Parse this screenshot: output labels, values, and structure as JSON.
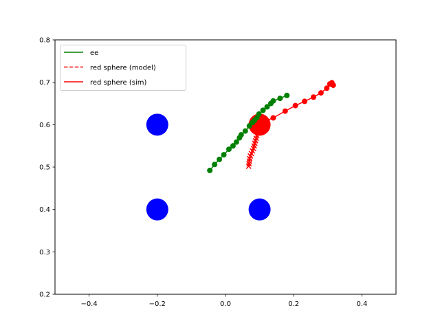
{
  "chart_data": {
    "type": "scatter",
    "title": "",
    "xlabel": "",
    "ylabel": "",
    "xlim": [
      -0.5,
      0.5
    ],
    "ylim": [
      0.2,
      0.8
    ],
    "grid": false,
    "legend_position": "upper-left",
    "xticks": [
      -0.4,
      -0.2,
      0.0,
      0.2,
      0.4
    ],
    "xtick_labels": [
      "−0.4",
      "−0.2",
      "0.0",
      "0.2",
      "0.4"
    ],
    "yticks": [
      0.2,
      0.3,
      0.4,
      0.5,
      0.6,
      0.7,
      0.8
    ],
    "ytick_labels": [
      "0.2",
      "0.3",
      "0.4",
      "0.5",
      "0.6",
      "0.7",
      "0.8"
    ],
    "legend": [
      {
        "label": "ee",
        "color": "#008000",
        "style": "solid"
      },
      {
        "label": "red sphere (model)",
        "color": "#ff0000",
        "style": "dashed"
      },
      {
        "label": "red sphere (sim)",
        "color": "#ff0000",
        "style": "solid"
      }
    ],
    "series": [
      {
        "name": "ee",
        "color": "#008000",
        "marker": "circle",
        "line": "solid",
        "points": [
          [
            -0.046,
            0.492
          ],
          [
            -0.032,
            0.506
          ],
          [
            -0.018,
            0.518
          ],
          [
            -0.005,
            0.529
          ],
          [
            0.01,
            0.542
          ],
          [
            0.022,
            0.55
          ],
          [
            0.032,
            0.559
          ],
          [
            0.041,
            0.569
          ],
          [
            0.046,
            0.576
          ],
          [
            0.058,
            0.585
          ],
          [
            0.07,
            0.597
          ],
          [
            0.079,
            0.605
          ],
          [
            0.085,
            0.61
          ],
          [
            0.092,
            0.616
          ],
          [
            0.098,
            0.625
          ],
          [
            0.11,
            0.634
          ],
          [
            0.122,
            0.642
          ],
          [
            0.133,
            0.65
          ],
          [
            0.14,
            0.656
          ],
          [
            0.16,
            0.662
          ],
          [
            0.18,
            0.669
          ]
        ]
      },
      {
        "name": "red sphere (model)",
        "color": "#ff0000",
        "marker": "x",
        "line": "dashed",
        "points": [
          [
            0.068,
            0.502
          ],
          [
            0.069,
            0.508
          ],
          [
            0.07,
            0.514
          ],
          [
            0.071,
            0.52
          ],
          [
            0.073,
            0.526
          ],
          [
            0.076,
            0.532
          ],
          [
            0.079,
            0.538
          ],
          [
            0.082,
            0.544
          ],
          [
            0.084,
            0.55
          ],
          [
            0.086,
            0.556
          ],
          [
            0.088,
            0.562
          ],
          [
            0.09,
            0.568
          ],
          [
            0.092,
            0.574
          ],
          [
            0.095,
            0.58
          ],
          [
            0.098,
            0.588
          ],
          [
            0.1,
            0.596
          ],
          [
            0.1,
            0.6
          ]
        ]
      },
      {
        "name": "red sphere (sim)",
        "color": "#ff0000",
        "marker": "circle",
        "line": "solid",
        "points": [
          [
            0.1,
            0.6
          ],
          [
            0.115,
            0.608
          ],
          [
            0.14,
            0.616
          ],
          [
            0.175,
            0.632
          ],
          [
            0.205,
            0.645
          ],
          [
            0.232,
            0.655
          ],
          [
            0.258,
            0.665
          ],
          [
            0.28,
            0.675
          ],
          [
            0.297,
            0.686
          ],
          [
            0.306,
            0.696
          ],
          [
            0.312,
            0.699
          ],
          [
            0.316,
            0.693
          ]
        ]
      }
    ],
    "large_markers": [
      {
        "x": -0.2,
        "y": 0.6,
        "color": "#0000ff",
        "size": "large"
      },
      {
        "x": -0.2,
        "y": 0.4,
        "color": "#0000ff",
        "size": "large"
      },
      {
        "x": 0.1,
        "y": 0.4,
        "color": "#0000ff",
        "size": "large"
      },
      {
        "x": 0.1,
        "y": 0.6,
        "color": "#ff0000",
        "size": "large"
      }
    ]
  }
}
